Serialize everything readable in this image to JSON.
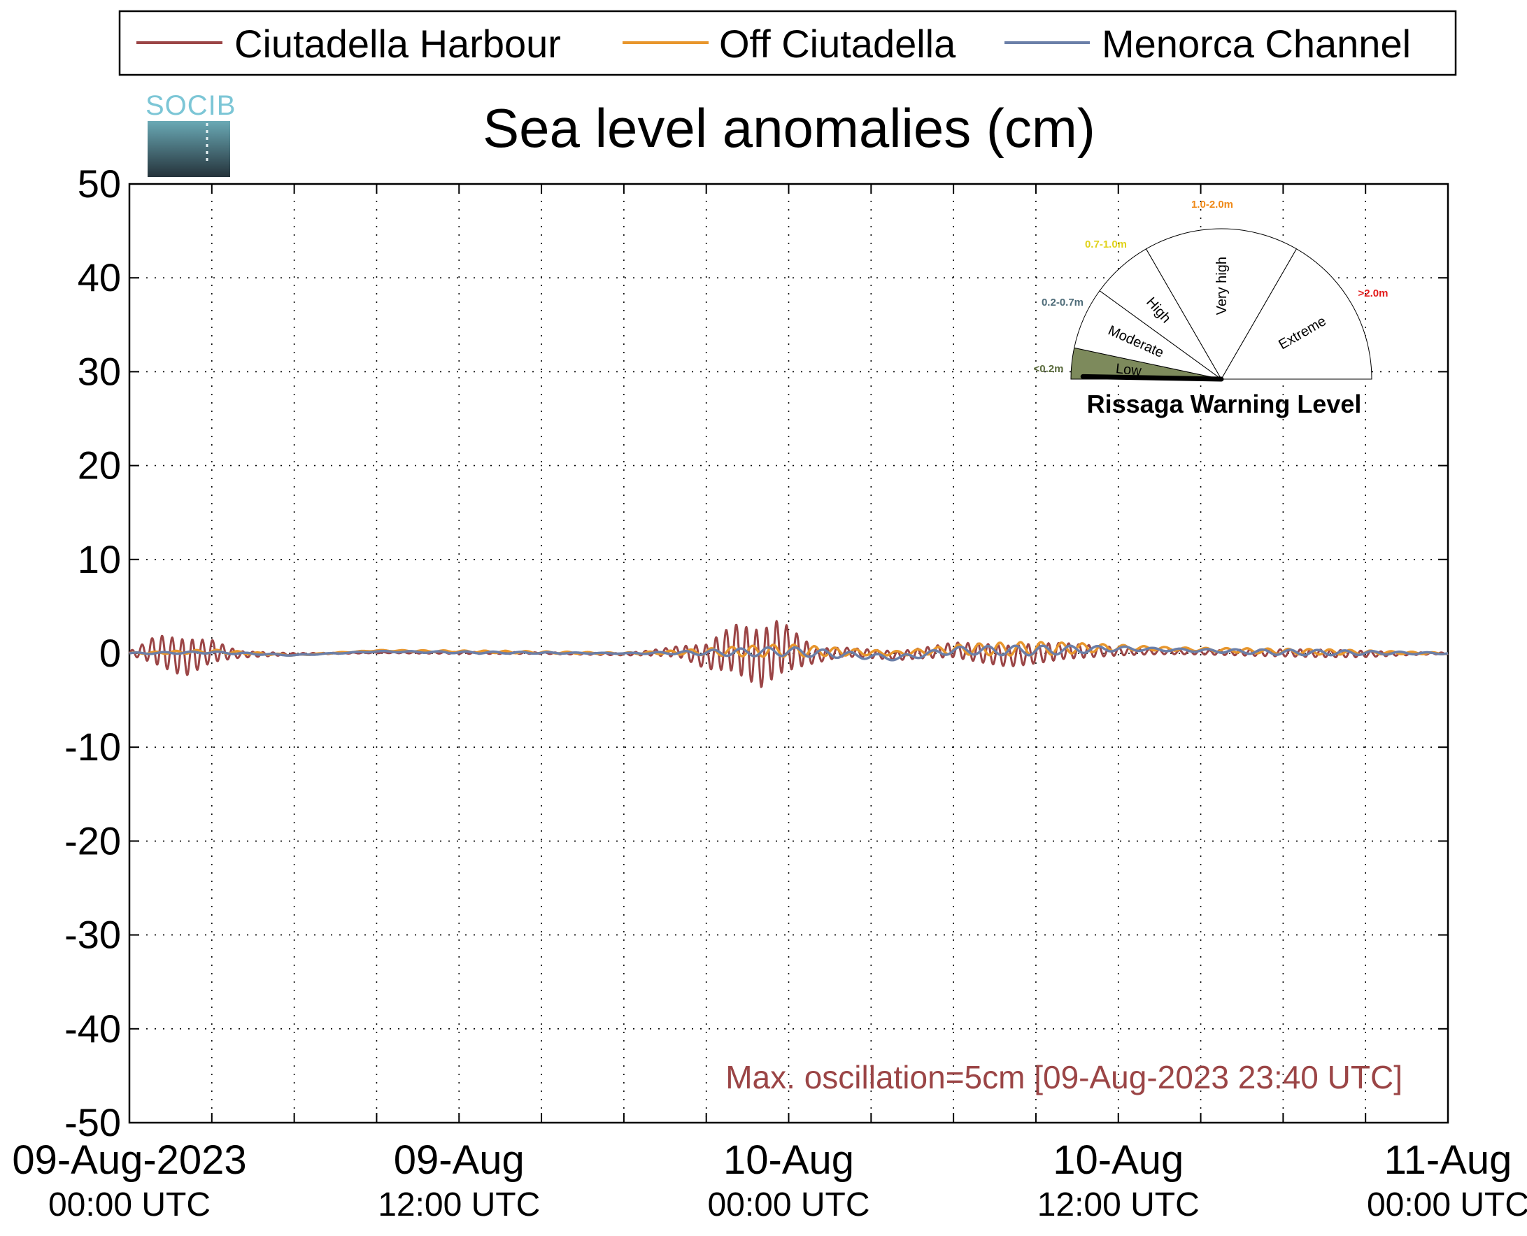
{
  "legend": [
    {
      "label": "Ciutadella Harbour",
      "color": "#9b4546"
    },
    {
      "label": "Off Ciutadella",
      "color": "#e8962c"
    },
    {
      "label": "Menorca Channel",
      "color": "#6b7fa8"
    }
  ],
  "logo": {
    "text": "SOCIB"
  },
  "note": "Max. oscillation=5cm [09-Aug-2023 23:40 UTC]",
  "gauge": {
    "title": "Rissaga Warning Level",
    "needle_value": 0.05,
    "low_fill_color": "#7d8a5c",
    "levels": [
      {
        "name": "Low",
        "range": "<0.2m",
        "range_color": "#5a6b3c"
      },
      {
        "name": "Moderate",
        "range": "0.2-0.7m",
        "range_color": "#4d6b78"
      },
      {
        "name": "High",
        "range": "0.7-1.0m",
        "range_color": "#e0d21a"
      },
      {
        "name": "Very high",
        "range": "1.0-2.0m",
        "range_color": "#ef8a1a"
      },
      {
        "name": "Extreme",
        "range": ">2.0m",
        "range_color": "#e21a1a"
      }
    ]
  },
  "chart_data": {
    "type": "line",
    "title": "Sea level anomalies (cm)",
    "xlabel": "",
    "ylabel": "",
    "xlim": [
      "2023-08-09T00:00Z",
      "2023-08-11T00:00Z"
    ],
    "ylim": [
      -50,
      50
    ],
    "y_ticks": [
      "50",
      "40",
      "30",
      "20",
      "10",
      "0",
      "-10",
      "-20",
      "-30",
      "-40",
      "-50"
    ],
    "x_ticks": [
      {
        "label": "09-Aug-2023",
        "sub": "00:00 UTC"
      },
      {
        "label": "09-Aug",
        "sub": "12:00 UTC"
      },
      {
        "label": "10-Aug",
        "sub": "00:00 UTC"
      },
      {
        "label": "10-Aug",
        "sub": "12:00 UTC"
      },
      {
        "label": "11-Aug",
        "sub": "00:00 UTC"
      }
    ],
    "grid": true,
    "legend_position": "top",
    "series": [
      {
        "name": "Ciutadella Harbour",
        "color": "#9b4546",
        "x": [
          "2023-08-09T00:00Z",
          "2023-08-09T01:00Z",
          "2023-08-09T02:00Z",
          "2023-08-09T03:00Z",
          "2023-08-09T04:00Z",
          "2023-08-09T06:00Z",
          "2023-08-09T09:00Z",
          "2023-08-09T12:00Z",
          "2023-08-09T15:00Z",
          "2023-08-09T18:00Z",
          "2023-08-09T20:00Z",
          "2023-08-09T21:00Z",
          "2023-08-09T22:00Z",
          "2023-08-09T23:00Z",
          "2023-08-09T23:40Z",
          "2023-08-10T01:00Z",
          "2023-08-10T02:00Z",
          "2023-08-10T04:00Z",
          "2023-08-10T06:00Z",
          "2023-08-10T08:00Z",
          "2023-08-10T10:00Z",
          "2023-08-10T12:00Z",
          "2023-08-10T15:00Z",
          "2023-08-10T18:00Z",
          "2023-08-10T21:00Z",
          "2023-08-11T00:00Z"
        ],
        "values": [
          0.0,
          1.5,
          -2.0,
          1.0,
          -0.5,
          -0.3,
          0.3,
          0.2,
          0.1,
          -0.4,
          0.8,
          -1.5,
          2.5,
          -2.5,
          3.0,
          -1.0,
          0.6,
          -1.0,
          1.5,
          -1.2,
          1.0,
          0.8,
          0.4,
          0.2,
          -0.3,
          0.0
        ],
        "amplitude": [
          0.3,
          1.8,
          2.0,
          1.2,
          0.4,
          0.2,
          0.1,
          0.1,
          0.1,
          0.3,
          0.9,
          1.6,
          2.6,
          3.0,
          3.0,
          1.0,
          0.8,
          1.2,
          1.3,
          1.2,
          0.9,
          0.7,
          0.5,
          0.4,
          0.4,
          0.2
        ]
      },
      {
        "name": "Off Ciutadella",
        "color": "#e8962c",
        "x": [
          "2023-08-09T00:00Z",
          "2023-08-09T03:00Z",
          "2023-08-09T06:00Z",
          "2023-08-09T09:00Z",
          "2023-08-09T12:00Z",
          "2023-08-09T18:00Z",
          "2023-08-09T22:00Z",
          "2023-08-10T00:00Z",
          "2023-08-10T04:00Z",
          "2023-08-10T06:00Z",
          "2023-08-10T09:00Z",
          "2023-08-10T12:00Z",
          "2023-08-10T18:00Z",
          "2023-08-11T00:00Z"
        ],
        "values": [
          0.0,
          0.2,
          -0.2,
          0.3,
          0.2,
          0.0,
          0.2,
          0.3,
          0.0,
          0.4,
          0.5,
          0.6,
          0.2,
          0.0
        ],
        "amplitude": [
          0.1,
          0.2,
          0.1,
          0.1,
          0.1,
          0.2,
          0.5,
          0.7,
          0.6,
          0.8,
          0.7,
          0.5,
          0.3,
          0.2
        ]
      },
      {
        "name": "Menorca Channel",
        "color": "#6b7fa8",
        "x": [
          "2023-08-09T00:00Z",
          "2023-08-09T03:00Z",
          "2023-08-09T06:00Z",
          "2023-08-09T09:00Z",
          "2023-08-09T12:00Z",
          "2023-08-09T18:00Z",
          "2023-08-09T22:00Z",
          "2023-08-10T00:00Z",
          "2023-08-10T04:00Z",
          "2023-08-10T06:00Z",
          "2023-08-10T09:00Z",
          "2023-08-10T12:00Z",
          "2023-08-10T18:00Z",
          "2023-08-11T00:00Z"
        ],
        "values": [
          0.0,
          0.1,
          -0.2,
          0.2,
          0.1,
          0.0,
          0.1,
          0.2,
          -0.5,
          0.3,
          0.3,
          0.5,
          0.1,
          0.0
        ],
        "amplitude": [
          0.1,
          0.1,
          0.1,
          0.1,
          0.1,
          0.1,
          0.4,
          0.5,
          0.7,
          0.6,
          0.5,
          0.4,
          0.3,
          0.2
        ]
      }
    ]
  }
}
